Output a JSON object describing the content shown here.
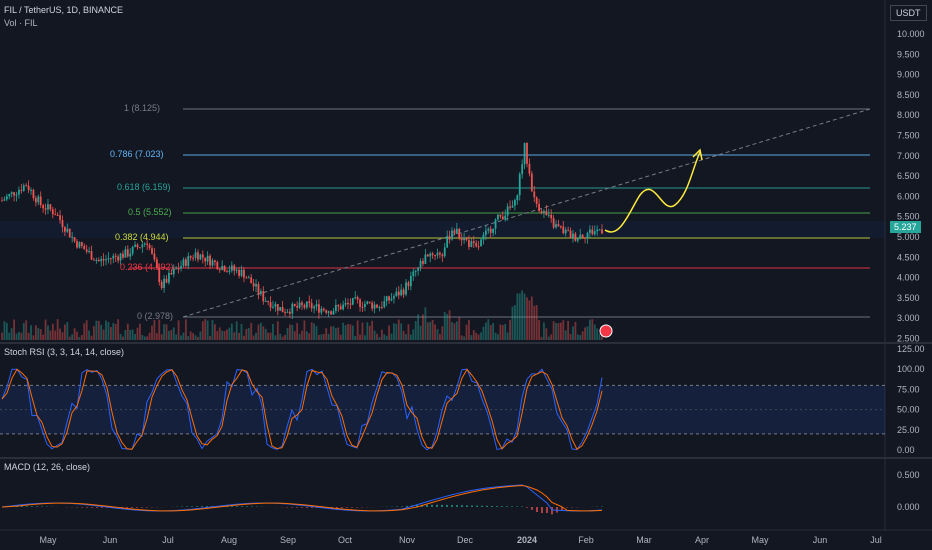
{
  "header": {
    "symbol_title": "FIL / TetherUS, 1D, BINANCE",
    "volume_label": "Vol · FIL",
    "currency": "USDT",
    "last_price": "5.237"
  },
  "price_axis": [
    "10.000",
    "9.500",
    "9.000",
    "8.500",
    "8.000",
    "7.500",
    "7.000",
    "6.500",
    "6.000",
    "5.500",
    "5.000",
    "4.500",
    "4.000",
    "3.500",
    "3.000",
    "2.500"
  ],
  "fib_levels": [
    {
      "label": "1 (8.125)",
      "color": "#787b86"
    },
    {
      "label": "0.786 (7.023)",
      "color": "#64b5f6"
    },
    {
      "label": "0.618 (6.159)",
      "color": "#26a69a"
    },
    {
      "label": "0.5 (5.552)",
      "color": "#4caf50"
    },
    {
      "label": "0.382 (4.944)",
      "color": "#cddc39"
    },
    {
      "label": "0.236 (4.192)",
      "color": "#f23645"
    },
    {
      "label": "0 (2.978)",
      "color": "#787b86"
    }
  ],
  "stoch_rsi": {
    "label": "Stoch RSI (3, 3, 14, 14, close)",
    "axis": [
      "125.00",
      "100.00",
      "75.00",
      "50.00",
      "25.00",
      "0.00"
    ]
  },
  "macd": {
    "label": "MACD (12, 26, close)",
    "axis": [
      "0.500",
      "0.000"
    ]
  },
  "time_axis": [
    "May",
    "Jun",
    "Jul",
    "Aug",
    "Sep",
    "Oct",
    "Nov",
    "Dec",
    "2024",
    "Feb",
    "Mar",
    "Apr",
    "May",
    "Jun",
    "Jul"
  ],
  "colors": {
    "up": "#26a69a",
    "down": "#ef5350",
    "bg": "#131722",
    "projection": "#ffeb3b",
    "stoch_k": "#2962ff",
    "stoch_d": "#ff6d00"
  },
  "icons": [
    "trendline-dashed",
    "projection-arrow",
    "events-flag-icon"
  ]
}
